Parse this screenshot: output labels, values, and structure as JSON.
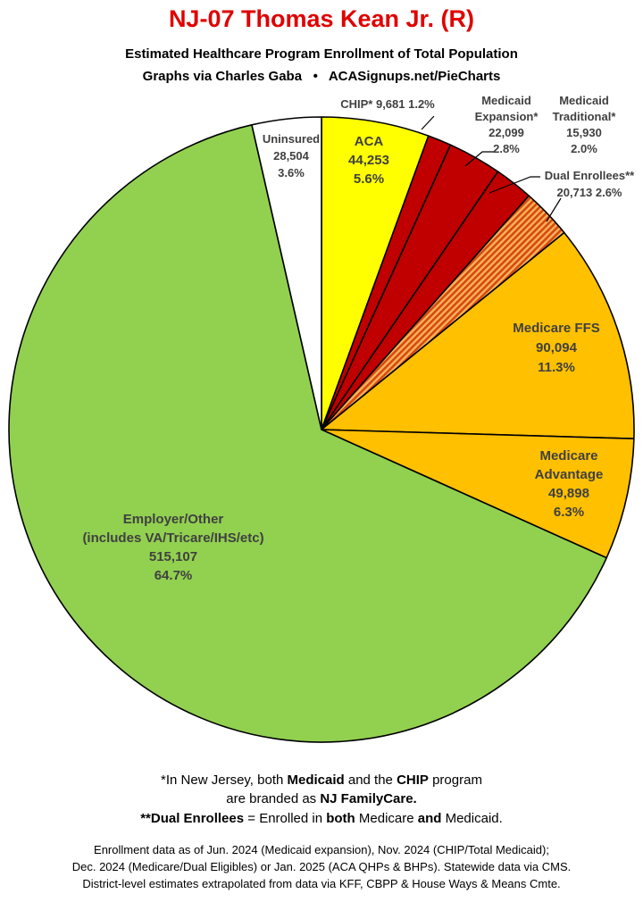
{
  "header": {
    "title": "NJ-07 Thomas Kean Jr. (R)",
    "subtitle": "Estimated Healthcare Program Enrollment of Total Population",
    "credit_left": "Graphs via Charles Gaba",
    "credit_sep": "•",
    "credit_right": "ACASignups.net/PieCharts"
  },
  "chart_data": {
    "type": "pie",
    "title": "NJ-07 Thomas Kean Jr. (R)",
    "subtitle": "Estimated Healthcare Program Enrollment of Total Population",
    "start": "12 o'clock",
    "direction": "clockwise",
    "slices": [
      {
        "label": "ACA",
        "value": 44253,
        "value_text": "44,253",
        "percent": 5.6,
        "percent_text": "5.6%",
        "color": "#ffff00",
        "pattern": "solid"
      },
      {
        "label": "CHIP*",
        "value": 9681,
        "value_text": "9,681",
        "percent": 1.2,
        "percent_text": "1.2%",
        "color": "#c00000",
        "pattern": "solid"
      },
      {
        "label": "Medicaid Expansion*",
        "label_lines": [
          "Medicaid",
          "Expansion*"
        ],
        "value": 22099,
        "value_text": "22,099",
        "percent": 2.8,
        "percent_text": "2.8%",
        "color": "#c00000",
        "pattern": "solid"
      },
      {
        "label": "Medicaid Traditional*",
        "label_lines": [
          "Medicaid",
          "Traditional*"
        ],
        "value": 15930,
        "value_text": "15,930",
        "percent": 2.0,
        "percent_text": "2.0%",
        "color": "#c00000",
        "pattern": "solid"
      },
      {
        "label": "Dual Enrollees**",
        "value": 20713,
        "value_text": "20,713",
        "percent": 2.6,
        "percent_text": "2.6%",
        "color": "#e8701a",
        "pattern": "striped"
      },
      {
        "label": "Medicare FFS",
        "value": 90094,
        "value_text": "90,094",
        "percent": 11.3,
        "percent_text": "11.3%",
        "color": "#ffc000",
        "pattern": "solid"
      },
      {
        "label": "Medicare Advantage",
        "label_lines": [
          "Medicare",
          "Advantage"
        ],
        "value": 49898,
        "value_text": "49,898",
        "percent": 6.3,
        "percent_text": "6.3%",
        "color": "#ffc000",
        "pattern": "solid"
      },
      {
        "label": "Employer/Other (includes VA/Tricare/IHS/etc)",
        "label_lines": [
          "Employer/Other",
          "(includes VA/Tricare/IHS/etc)"
        ],
        "value": 515107,
        "value_text": "515,107",
        "percent": 64.7,
        "percent_text": "64.7%",
        "color": "#92d050",
        "pattern": "solid"
      },
      {
        "label": "Uninsured",
        "value": 28504,
        "value_text": "28,504",
        "percent": 3.6,
        "percent_text": "3.6%",
        "color": "#ffffff",
        "pattern": "solid"
      }
    ]
  },
  "notes": {
    "line1_pre": "*In New Jersey, both ",
    "line1_b1": "Medicaid",
    "line1_mid": " and the ",
    "line1_b2": "CHIP",
    "line1_post": " program",
    "line2_pre": "are branded as ",
    "line2_b": "NJ FamilyCare.",
    "line3_b1": "**Dual Enrollees",
    "line3_mid": " = Enrolled in ",
    "line3_b2": "both",
    "line3_mid2": " Medicare ",
    "line3_b3": "and",
    "line3_post": " Medicaid."
  },
  "sources": {
    "line1": "Enrollment data as of Jun. 2024 (Medicaid expansion), Nov. 2024 (CHIP/Total Medicaid);",
    "line2": "Dec. 2024 (Medicare/Dual Eligibles) or Jan. 2025 (ACA QHPs & BHPs). Statewide data via CMS.",
    "line3": "District-level estimates extrapolated from data via KFF, CBPP & House Ways & Means Cmte."
  }
}
